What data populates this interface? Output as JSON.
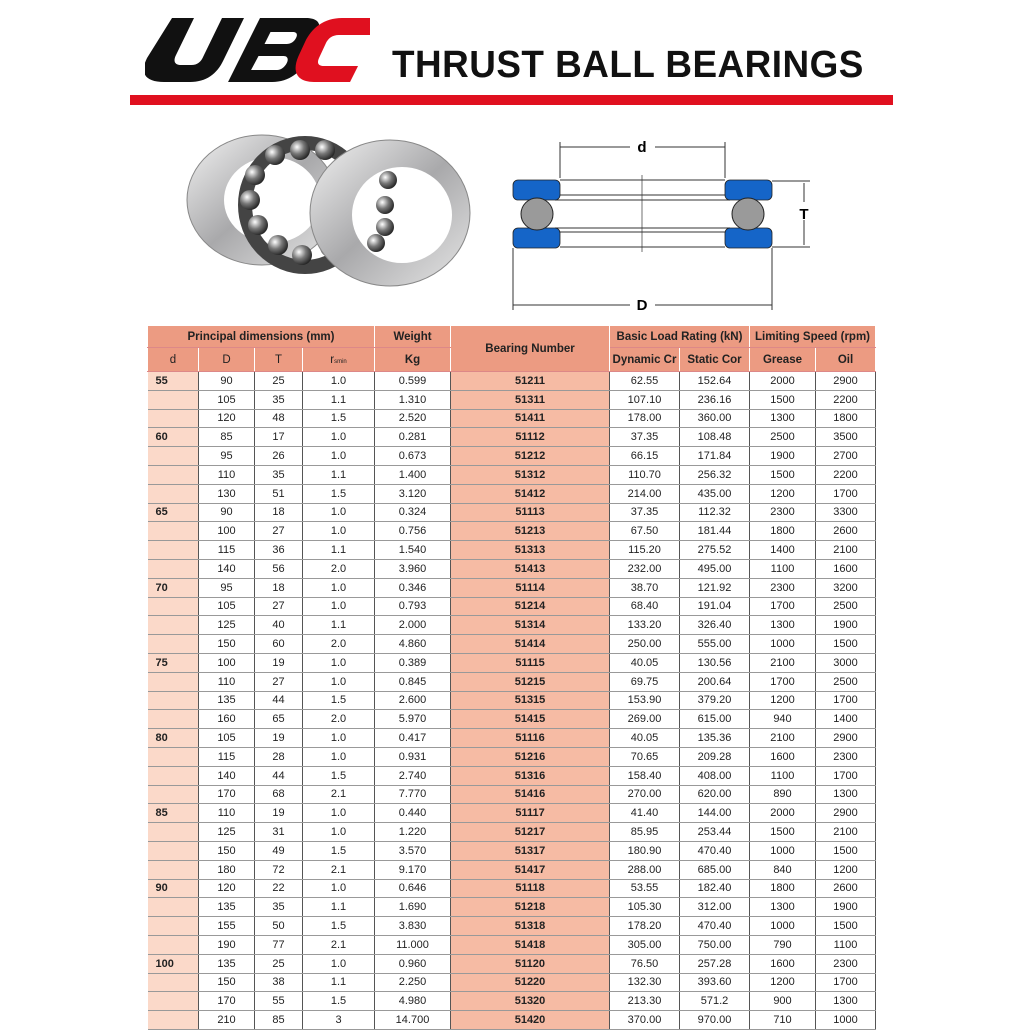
{
  "brand": {
    "logo_text": "UBC",
    "logo_black": "#111111",
    "logo_red": "#e0101f"
  },
  "header": {
    "title": "THRUST BALL BEARINGS",
    "bar_color": "#e0101f"
  },
  "diagram": {
    "label_d": "d",
    "label_D": "D",
    "label_T": "T",
    "ring_color": "#1565c8",
    "ball_color": "#9a9a9a"
  },
  "table": {
    "group_headers": {
      "principal": "Principal dimensions (mm)",
      "weight": "Weight",
      "bearing": "Bearing Number",
      "load": "Basic Load Rating (kN)",
      "speed": "Limiting Speed (rpm)"
    },
    "columns": {
      "d": "d",
      "D": "D",
      "T": "T",
      "r": "r",
      "r_sub": "smin",
      "kg": "Kg",
      "dyn": "Dynamic Cr",
      "stat": "Static Cor",
      "grease": "Grease",
      "oil": "Oil"
    },
    "header_color": "#ec9b82",
    "bearing_col_color": "#f6bba4",
    "d_col_color": "#fbd9c9",
    "rows": [
      [
        "55",
        "90",
        "25",
        "1.0",
        "0.599",
        "51211",
        "62.55",
        "152.64",
        "2000",
        "2900"
      ],
      [
        "",
        "105",
        "35",
        "1.1",
        "1.310",
        "51311",
        "107.10",
        "236.16",
        "1500",
        "2200"
      ],
      [
        "",
        "120",
        "48",
        "1.5",
        "2.520",
        "51411",
        "178.00",
        "360.00",
        "1300",
        "1800"
      ],
      [
        "60",
        "85",
        "17",
        "1.0",
        "0.281",
        "51112",
        "37.35",
        "108.48",
        "2500",
        "3500"
      ],
      [
        "",
        "95",
        "26",
        "1.0",
        "0.673",
        "51212",
        "66.15",
        "171.84",
        "1900",
        "2700"
      ],
      [
        "",
        "110",
        "35",
        "1.1",
        "1.400",
        "51312",
        "110.70",
        "256.32",
        "1500",
        "2200"
      ],
      [
        "",
        "130",
        "51",
        "1.5",
        "3.120",
        "51412",
        "214.00",
        "435.00",
        "1200",
        "1700"
      ],
      [
        "65",
        "90",
        "18",
        "1.0",
        "0.324",
        "51113",
        "37.35",
        "112.32",
        "2300",
        "3300"
      ],
      [
        "",
        "100",
        "27",
        "1.0",
        "0.756",
        "51213",
        "67.50",
        "181.44",
        "1800",
        "2600"
      ],
      [
        "",
        "115",
        "36",
        "1.1",
        "1.540",
        "51313",
        "115.20",
        "275.52",
        "1400",
        "2100"
      ],
      [
        "",
        "140",
        "56",
        "2.0",
        "3.960",
        "51413",
        "232.00",
        "495.00",
        "1100",
        "1600"
      ],
      [
        "70",
        "95",
        "18",
        "1.0",
        "0.346",
        "51114",
        "38.70",
        "121.92",
        "2300",
        "3200"
      ],
      [
        "",
        "105",
        "27",
        "1.0",
        "0.793",
        "51214",
        "68.40",
        "191.04",
        "1700",
        "2500"
      ],
      [
        "",
        "125",
        "40",
        "1.1",
        "2.000",
        "51314",
        "133.20",
        "326.40",
        "1300",
        "1900"
      ],
      [
        "",
        "150",
        "60",
        "2.0",
        "4.860",
        "51414",
        "250.00",
        "555.00",
        "1000",
        "1500"
      ],
      [
        "75",
        "100",
        "19",
        "1.0",
        "0.389",
        "51115",
        "40.05",
        "130.56",
        "2100",
        "3000"
      ],
      [
        "",
        "110",
        "27",
        "1.0",
        "0.845",
        "51215",
        "69.75",
        "200.64",
        "1700",
        "2500"
      ],
      [
        "",
        "135",
        "44",
        "1.5",
        "2.600",
        "51315",
        "153.90",
        "379.20",
        "1200",
        "1700"
      ],
      [
        "",
        "160",
        "65",
        "2.0",
        "5.970",
        "51415",
        "269.00",
        "615.00",
        "940",
        "1400"
      ],
      [
        "80",
        "105",
        "19",
        "1.0",
        "0.417",
        "51116",
        "40.05",
        "135.36",
        "2100",
        "2900"
      ],
      [
        "",
        "115",
        "28",
        "1.0",
        "0.931",
        "51216",
        "70.65",
        "209.28",
        "1600",
        "2300"
      ],
      [
        "",
        "140",
        "44",
        "1.5",
        "2.740",
        "51316",
        "158.40",
        "408.00",
        "1100",
        "1700"
      ],
      [
        "",
        "170",
        "68",
        "2.1",
        "7.770",
        "51416",
        "270.00",
        "620.00",
        "890",
        "1300"
      ],
      [
        "85",
        "110",
        "19",
        "1.0",
        "0.440",
        "51117",
        "41.40",
        "144.00",
        "2000",
        "2900"
      ],
      [
        "",
        "125",
        "31",
        "1.0",
        "1.220",
        "51217",
        "85.95",
        "253.44",
        "1500",
        "2100"
      ],
      [
        "",
        "150",
        "49",
        "1.5",
        "3.570",
        "51317",
        "180.90",
        "470.40",
        "1000",
        "1500"
      ],
      [
        "",
        "180",
        "72",
        "2.1",
        "9.170",
        "51417",
        "288.00",
        "685.00",
        "840",
        "1200"
      ],
      [
        "90",
        "120",
        "22",
        "1.0",
        "0.646",
        "51118",
        "53.55",
        "182.40",
        "1800",
        "2600"
      ],
      [
        "",
        "135",
        "35",
        "1.1",
        "1.690",
        "51218",
        "105.30",
        "312.00",
        "1300",
        "1900"
      ],
      [
        "",
        "155",
        "50",
        "1.5",
        "3.830",
        "51318",
        "178.20",
        "470.40",
        "1000",
        "1500"
      ],
      [
        "",
        "190",
        "77",
        "2.1",
        "11.000",
        "51418",
        "305.00",
        "750.00",
        "790",
        "1100"
      ],
      [
        "100",
        "135",
        "25",
        "1.0",
        "0.960",
        "51120",
        "76.50",
        "257.28",
        "1600",
        "2300"
      ],
      [
        "",
        "150",
        "38",
        "1.1",
        "2.250",
        "51220",
        "132.30",
        "393.60",
        "1200",
        "1700"
      ],
      [
        "",
        "170",
        "55",
        "1.5",
        "4.980",
        "51320",
        "213.30",
        "571.2",
        "900",
        "1300"
      ],
      [
        "",
        "210",
        "85",
        "3",
        "14.700",
        "51420",
        "370.00",
        "970.00",
        "710",
        "1000"
      ]
    ]
  }
}
